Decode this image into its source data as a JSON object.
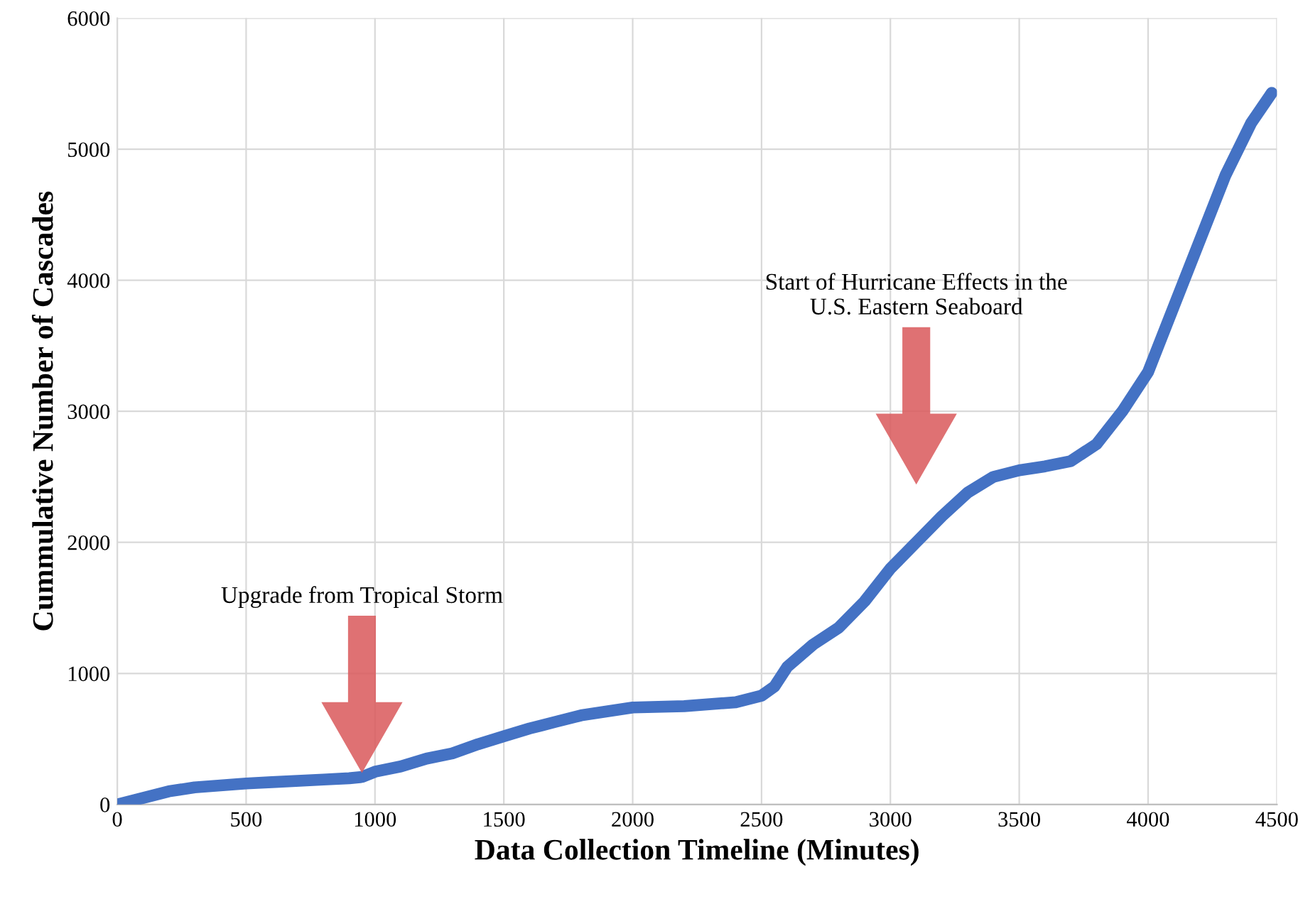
{
  "chart_data": {
    "type": "line",
    "xlabel": "Data Collection Timeline (Minutes)",
    "ylabel": "Cummulative Number of Cascades",
    "xlim": [
      0,
      4500
    ],
    "xticks": [
      0,
      500,
      1000,
      1500,
      2000,
      2500,
      3000,
      3500,
      4000,
      4500
    ],
    "ylim": [
      0,
      6000
    ],
    "yticks": [
      0,
      1000,
      2000,
      3000,
      4000,
      5000,
      6000
    ],
    "grid": true,
    "legend": false,
    "series": [
      {
        "color": "#4472c4",
        "x": [
          0,
          100,
          200,
          300,
          500,
          600,
          800,
          900,
          950,
          1000,
          1100,
          1200,
          1300,
          1400,
          1500,
          1600,
          1700,
          1800,
          1900,
          2000,
          2200,
          2400,
          2500,
          2550,
          2600,
          2700,
          2800,
          2900,
          3000,
          3100,
          3200,
          3300,
          3400,
          3500,
          3600,
          3700,
          3800,
          3900,
          4000,
          4100,
          4200,
          4300,
          4400,
          4480
        ],
        "values": [
          0,
          50,
          100,
          130,
          160,
          170,
          190,
          200,
          210,
          250,
          290,
          350,
          390,
          460,
          520,
          580,
          630,
          680,
          710,
          740,
          750,
          780,
          830,
          900,
          1050,
          1220,
          1350,
          1550,
          1800,
          2000,
          2200,
          2380,
          2500,
          2550,
          2580,
          2620,
          2750,
          3000,
          3300,
          3800,
          4300,
          4800,
          5200,
          5430
        ]
      }
    ],
    "annotations": [
      "Upgrade from Tropical Storm",
      "Start of Hurricane Effects in the\nU.S. Eastern Seaboard"
    ]
  }
}
